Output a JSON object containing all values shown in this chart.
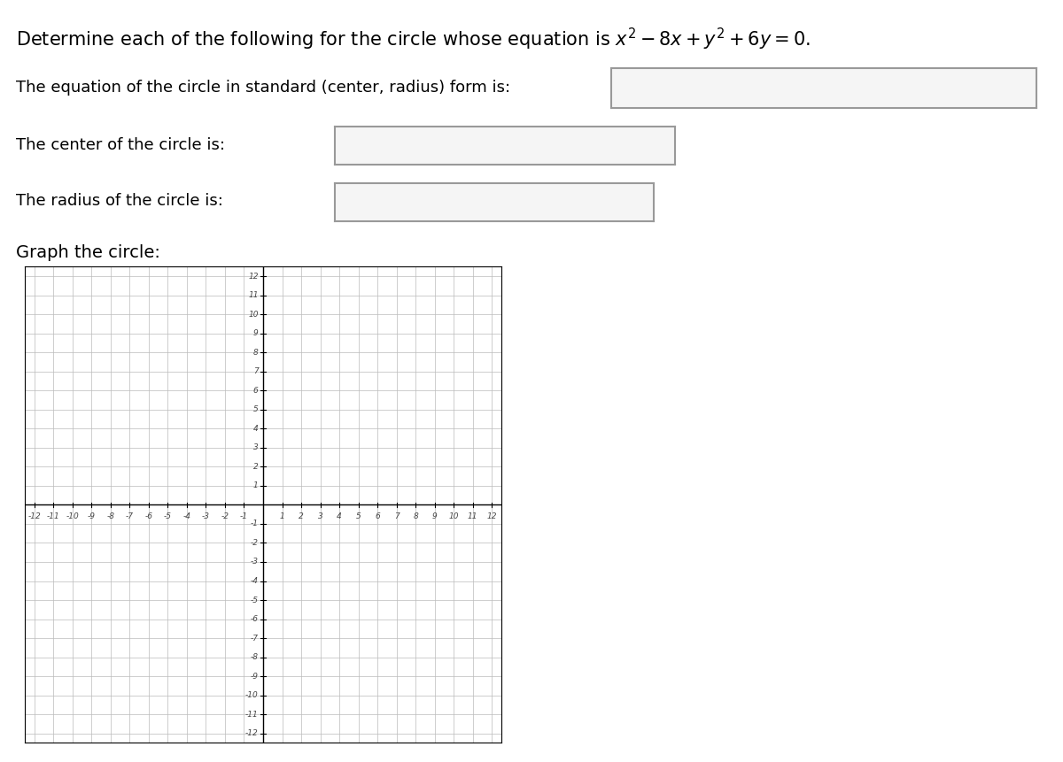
{
  "title_text": "Determine each of the following for the circle whose equation is $x^2 - 8x + y^2 + 6y = 0$.",
  "line1_label": "The equation of the circle in standard (center, radius) form is:",
  "line2_label": "The center of the circle is:",
  "line3_label": "The radius of the circle is:",
  "line4_label": "Graph the circle:",
  "bg_color": "#ffffff",
  "grid_color": "#bbbbbb",
  "axis_color": "#000000",
  "tick_label_color": "#444444",
  "text_color": "#000000",
  "box_facecolor": "#f5f5f5",
  "box_edgecolor": "#999999",
  "axis_range": [
    -12,
    12
  ],
  "fig_width": 12.0,
  "fig_height": 8.61,
  "dpi": 100,
  "font_size_title": 15,
  "font_size_labels": 13,
  "font_size_graph_label": 14,
  "font_size_tick": 6.5
}
